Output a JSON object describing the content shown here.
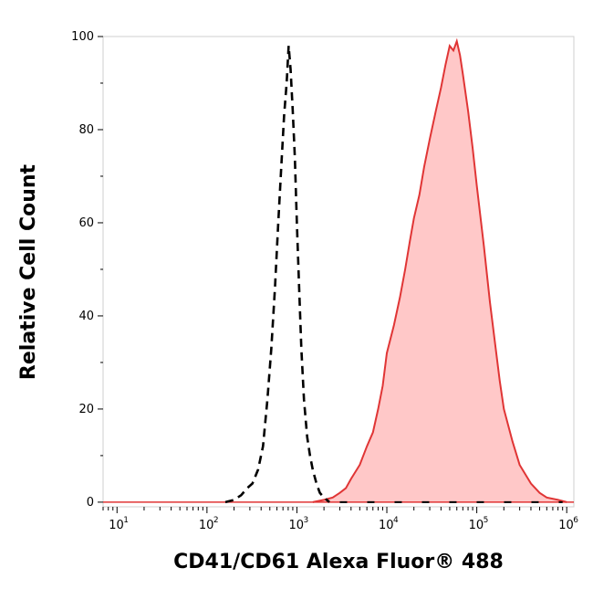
{
  "chart_data": {
    "type": "area",
    "xlabel": "CD41/CD61 Alexa Fluor® 488",
    "ylabel": "Relative Cell Count",
    "x_scale": "log",
    "xlim": [
      7,
      1200000
    ],
    "ylim": [
      -1,
      100
    ],
    "x_ticks": [
      {
        "base": "10",
        "exp": "1",
        "value": 10
      },
      {
        "base": "10",
        "exp": "2",
        "value": 100
      },
      {
        "base": "10",
        "exp": "3",
        "value": 1000
      },
      {
        "base": "10",
        "exp": "4",
        "value": 10000
      },
      {
        "base": "10",
        "exp": "5",
        "value": 100000
      },
      {
        "base": "10",
        "exp": "6",
        "value": 1000000
      }
    ],
    "y_ticks": [
      "0",
      "20",
      "40",
      "60",
      "80",
      "100"
    ],
    "grid": false,
    "series": [
      {
        "style": "dashed-black",
        "color": "#000000",
        "points": [
          [
            160,
            0
          ],
          [
            200,
            0.5
          ],
          [
            240,
            1.5
          ],
          [
            280,
            3
          ],
          [
            320,
            4
          ],
          [
            370,
            7
          ],
          [
            420,
            12
          ],
          [
            470,
            22
          ],
          [
            520,
            33
          ],
          [
            570,
            46
          ],
          [
            620,
            60
          ],
          [
            670,
            72
          ],
          [
            720,
            83
          ],
          [
            770,
            90
          ],
          [
            810,
            98
          ],
          [
            850,
            93
          ],
          [
            900,
            84
          ],
          [
            950,
            74
          ],
          [
            1000,
            60
          ],
          [
            1060,
            46
          ],
          [
            1120,
            33
          ],
          [
            1200,
            22
          ],
          [
            1300,
            14
          ],
          [
            1400,
            10
          ],
          [
            1500,
            7
          ],
          [
            1650,
            4
          ],
          [
            1800,
            2
          ],
          [
            2000,
            1
          ],
          [
            2300,
            0
          ]
        ]
      },
      {
        "style": "filled-red",
        "color": "#e03535",
        "fill": "#ffc8c8",
        "points": [
          [
            1500,
            0
          ],
          [
            2000,
            0.5
          ],
          [
            2500,
            1
          ],
          [
            3000,
            2
          ],
          [
            3500,
            3
          ],
          [
            4000,
            5
          ],
          [
            5000,
            8
          ],
          [
            6000,
            12
          ],
          [
            7000,
            15
          ],
          [
            8000,
            20
          ],
          [
            9000,
            25
          ],
          [
            10000,
            32
          ],
          [
            12000,
            38
          ],
          [
            14000,
            44
          ],
          [
            16000,
            50
          ],
          [
            18000,
            56
          ],
          [
            20000,
            61
          ],
          [
            23000,
            66
          ],
          [
            26000,
            72
          ],
          [
            30000,
            78
          ],
          [
            35000,
            84
          ],
          [
            40000,
            89
          ],
          [
            45000,
            94
          ],
          [
            50000,
            98
          ],
          [
            55000,
            97
          ],
          [
            60000,
            99
          ],
          [
            65000,
            96
          ],
          [
            70000,
            92
          ],
          [
            80000,
            84
          ],
          [
            90000,
            76
          ],
          [
            100000,
            68
          ],
          [
            120000,
            55
          ],
          [
            140000,
            43
          ],
          [
            160000,
            34
          ],
          [
            180000,
            26
          ],
          [
            200000,
            20
          ],
          [
            250000,
            13
          ],
          [
            300000,
            8
          ],
          [
            400000,
            4
          ],
          [
            500000,
            2
          ],
          [
            600000,
            1
          ],
          [
            800000,
            0.5
          ],
          [
            1000000,
            0
          ]
        ]
      }
    ]
  }
}
